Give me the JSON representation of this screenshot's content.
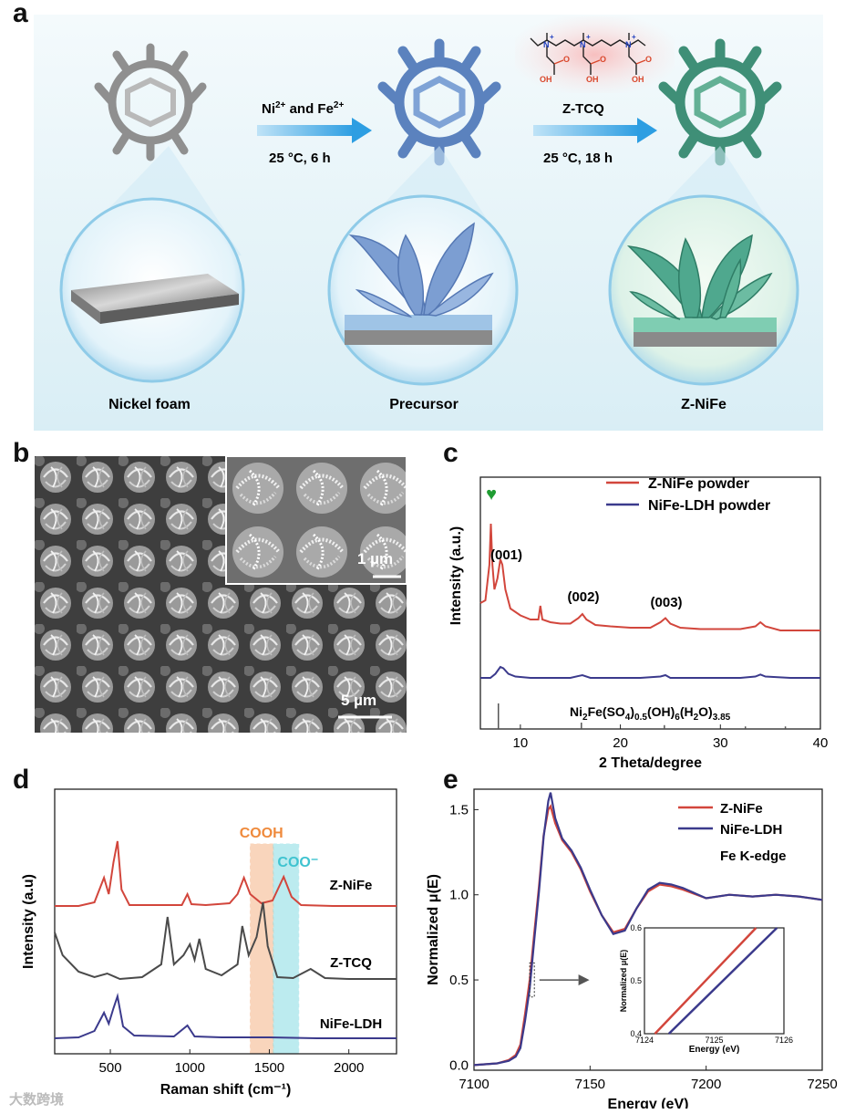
{
  "panel_labels": {
    "a": "a",
    "b": "b",
    "c": "c",
    "d": "d",
    "e": "e"
  },
  "panel_a": {
    "step1": {
      "reagent_main": "Ni",
      "reagent_sup1": "2+",
      "reagent_mid": " and Fe",
      "reagent_sup2": "2+",
      "condition": "25 °C, 6 h"
    },
    "step2": {
      "reagent": "Z-TCQ",
      "condition": "25 °C, 18 h"
    },
    "molecule_atoms": {
      "n": "N",
      "plus": "+",
      "oh": "OH",
      "o": "O"
    },
    "labels": {
      "nickel_foam": "Nickel foam",
      "precursor": "Precursor",
      "z_nife": "Z-NiFe"
    },
    "colors": {
      "background": "#e3f1f6",
      "arrow": "#3ea7e4",
      "nickel": "#9a9a9a",
      "precursor": "#6f93c9",
      "znife": "#4fa88e",
      "highlight": "#f7c6c6"
    }
  },
  "panel_b": {
    "scale_main": "5 µm",
    "scale_inset": "1 µm"
  },
  "chart_data": [
    {
      "panel": "c",
      "type": "line",
      "xlabel": "2 Theta/degree",
      "ylabel": "Intensity (a.u.)",
      "xlim": [
        6,
        40
      ],
      "xticks": [
        10,
        20,
        30,
        40
      ],
      "grid": false,
      "legend_position": "top-right",
      "series": [
        {
          "name": "Z-NiFe powder",
          "color": "#d2463c",
          "x": [
            6.0,
            6.5,
            6.9,
            7.05,
            7.2,
            7.4,
            7.7,
            8.0,
            8.2,
            8.5,
            9.0,
            10,
            11,
            11.8,
            12.0,
            12.2,
            13,
            14,
            15,
            15.8,
            16.2,
            16.6,
            17.5,
            19,
            21,
            23,
            24,
            24.5,
            25,
            26,
            28,
            30,
            32,
            33.5,
            34,
            34.5,
            36,
            38,
            40
          ],
          "y": [
            0.42,
            0.44,
            0.7,
            1.0,
            0.7,
            0.52,
            0.6,
            0.74,
            0.7,
            0.52,
            0.38,
            0.33,
            0.3,
            0.3,
            0.4,
            0.3,
            0.28,
            0.27,
            0.27,
            0.31,
            0.34,
            0.3,
            0.26,
            0.25,
            0.24,
            0.24,
            0.28,
            0.31,
            0.27,
            0.24,
            0.23,
            0.23,
            0.23,
            0.25,
            0.28,
            0.25,
            0.22,
            0.22,
            0.22
          ]
        },
        {
          "name": "NiFe-LDH powder",
          "color": "#3b3a8c",
          "x": [
            6.0,
            7,
            7.5,
            8.0,
            8.3,
            8.8,
            9.5,
            11,
            13,
            15,
            16.2,
            17,
            19,
            22,
            24,
            24.5,
            25,
            28,
            32,
            33.5,
            34,
            34.5,
            37,
            40
          ],
          "y": [
            0.02,
            0.02,
            0.05,
            0.1,
            0.09,
            0.05,
            0.03,
            0.02,
            0.02,
            0.02,
            0.04,
            0.02,
            0.02,
            0.02,
            0.03,
            0.04,
            0.02,
            0.02,
            0.02,
            0.03,
            0.045,
            0.03,
            0.02,
            0.02
          ]
        }
      ],
      "annotations": {
        "peak_001": "(001)",
        "peak_002": "(002)",
        "peak_003": "(003)",
        "heart_marker": "♥",
        "heart_color": "#1f9c32"
      },
      "reference": {
        "label_main": "Ni",
        "sub1": "2",
        "mid1": "Fe(SO",
        "sub2": "4",
        "mid2": ")",
        "sub3": "0.5",
        "mid3": "(OH)",
        "sub4": "6",
        "mid4": "(H",
        "sub5": "2",
        "mid5": "O)",
        "sub6": "3.85",
        "sticks": [
          {
            "x": 7.8,
            "h": 1.0
          },
          {
            "x": 16.1,
            "h": 0.25
          },
          {
            "x": 24.4,
            "h": 0.15
          },
          {
            "x": 32.5,
            "h": 0.1
          },
          {
            "x": 36.5,
            "h": 0.1
          }
        ]
      }
    },
    {
      "panel": "d",
      "type": "line",
      "xlabel": "Raman shift (cm⁻¹)",
      "ylabel": "Intensity (a.u)",
      "xlim": [
        150,
        2300
      ],
      "xticks": [
        500,
        1000,
        1500,
        2000
      ],
      "grid": false,
      "bands": [
        {
          "label": "COOH",
          "from": 1380,
          "to": 1525,
          "color": "#f3a36c"
        },
        {
          "label": "COO⁻",
          "from": 1525,
          "to": 1685,
          "color": "#6dd3dc"
        }
      ],
      "series": [
        {
          "name": "Z-NiFe",
          "color": "#d2463c",
          "x": [
            150,
            300,
            400,
            460,
            490,
            520,
            545,
            570,
            620,
            800,
            950,
            985,
            1010,
            1100,
            1250,
            1300,
            1340,
            1380,
            1450,
            1520,
            1590,
            1640,
            1700,
            1900,
            2100,
            2300
          ],
          "y": [
            0.02,
            0.02,
            0.06,
            0.33,
            0.15,
            0.5,
            0.73,
            0.2,
            0.03,
            0.03,
            0.03,
            0.15,
            0.04,
            0.03,
            0.05,
            0.15,
            0.33,
            0.15,
            0.05,
            0.08,
            0.34,
            0.12,
            0.03,
            0.02,
            0.02,
            0.02
          ]
        },
        {
          "name": "Z-TCQ",
          "color": "#4a4a4a",
          "x": [
            150,
            200,
            300,
            400,
            480,
            560,
            700,
            820,
            860,
            900,
            960,
            1000,
            1030,
            1060,
            1100,
            1200,
            1300,
            1330,
            1370,
            1420,
            1460,
            1490,
            1550,
            1650,
            1760,
            1850,
            2000,
            2300
          ],
          "y": [
            0.55,
            0.3,
            0.12,
            0.06,
            0.1,
            0.04,
            0.06,
            0.2,
            0.72,
            0.2,
            0.3,
            0.42,
            0.25,
            0.48,
            0.15,
            0.08,
            0.2,
            0.62,
            0.3,
            0.5,
            0.88,
            0.4,
            0.06,
            0.05,
            0.15,
            0.05,
            0.04,
            0.04
          ]
        },
        {
          "name": "NiFe-LDH",
          "color": "#3b3a8c",
          "x": [
            150,
            300,
            400,
            460,
            490,
            520,
            545,
            580,
            650,
            900,
            985,
            1030,
            1200,
            1500,
            1800,
            2300
          ],
          "y": [
            0.02,
            0.03,
            0.1,
            0.3,
            0.18,
            0.35,
            0.48,
            0.15,
            0.05,
            0.04,
            0.16,
            0.04,
            0.03,
            0.03,
            0.02,
            0.02
          ]
        }
      ]
    },
    {
      "panel": "e",
      "type": "line",
      "xlabel": "Energy (eV)",
      "ylabel": "Normalized μ(E)",
      "xlim": [
        7100,
        7250
      ],
      "ylim": [
        -0.03,
        1.62
      ],
      "xticks": [
        7100,
        7150,
        7200,
        7250
      ],
      "yticks": [
        "0.0",
        "0.5",
        "1.0",
        "1.5"
      ],
      "grid": false,
      "legend_position": "top-right",
      "annotation": "Fe K-edge",
      "series": [
        {
          "name": "Z-NiFe",
          "color": "#d2463c",
          "x": [
            7100,
            7110,
            7115,
            7118,
            7120,
            7122,
            7124,
            7126,
            7128,
            7130,
            7132,
            7133,
            7135,
            7138,
            7142,
            7146,
            7150,
            7155,
            7160,
            7165,
            7170,
            7175,
            7180,
            7185,
            7190,
            7200,
            7210,
            7220,
            7230,
            7240,
            7250
          ],
          "y": [
            0.0,
            0.01,
            0.03,
            0.06,
            0.12,
            0.3,
            0.5,
            0.78,
            1.05,
            1.35,
            1.5,
            1.52,
            1.42,
            1.32,
            1.25,
            1.15,
            1.02,
            0.88,
            0.78,
            0.8,
            0.92,
            1.02,
            1.06,
            1.05,
            1.03,
            0.98,
            1.0,
            0.99,
            1.0,
            0.99,
            0.97
          ]
        },
        {
          "name": "NiFe-LDH",
          "color": "#3b3a8c",
          "x": [
            7100,
            7110,
            7115,
            7118,
            7120,
            7122,
            7124,
            7126,
            7128,
            7130,
            7132,
            7133,
            7135,
            7138,
            7142,
            7146,
            7150,
            7155,
            7160,
            7165,
            7170,
            7175,
            7180,
            7185,
            7190,
            7200,
            7210,
            7220,
            7230,
            7240,
            7250
          ],
          "y": [
            0.0,
            0.01,
            0.025,
            0.05,
            0.1,
            0.26,
            0.45,
            0.74,
            1.02,
            1.34,
            1.55,
            1.6,
            1.45,
            1.33,
            1.26,
            1.16,
            1.03,
            0.88,
            0.77,
            0.79,
            0.92,
            1.03,
            1.07,
            1.06,
            1.04,
            0.98,
            1.0,
            0.99,
            1.0,
            0.99,
            0.97
          ]
        }
      ],
      "inset": {
        "xlabel": "Energy (eV)",
        "ylabel": "Normalized μ(E)",
        "xlim": [
          7124,
          7126
        ],
        "ylim": [
          0.4,
          0.6
        ],
        "xticks": [
          7124,
          7125,
          7126
        ],
        "yticks": [
          "0.4",
          "0.5",
          "0.6"
        ],
        "series": [
          {
            "name": "Z-NiFe",
            "x": [
              7124.15,
              7125.6
            ],
            "y": [
              0.4,
              0.6
            ]
          },
          {
            "name": "NiFe-LDH",
            "x": [
              7124.35,
              7125.9
            ],
            "y": [
              0.4,
              0.6
            ]
          }
        ]
      }
    }
  ],
  "watermark": "大数跨境"
}
